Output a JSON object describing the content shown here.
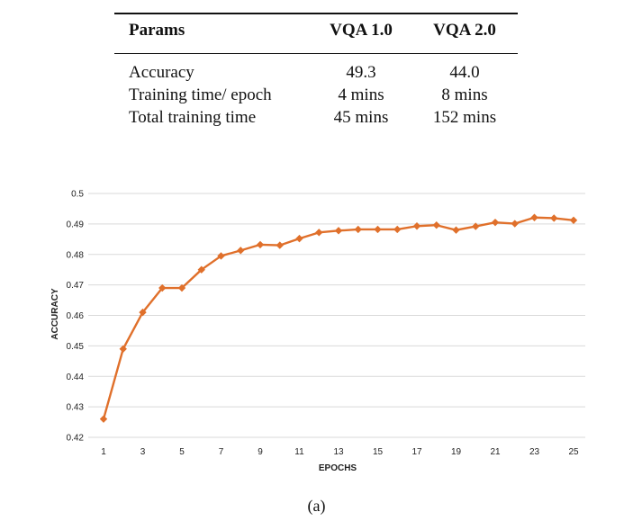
{
  "table": {
    "headers": [
      "Params",
      "VQA 1.0",
      "VQA 2.0"
    ],
    "rows": [
      [
        "Accuracy",
        "49.3",
        "44.0"
      ],
      [
        "Training time/ epoch",
        "4 mins",
        "8 mins"
      ],
      [
        "Total training time",
        "45 mins",
        "152 mins"
      ]
    ]
  },
  "chart_data": {
    "type": "line",
    "xlabel": "EPOCHS",
    "ylabel": "ACCURACY",
    "x": [
      1,
      2,
      3,
      4,
      5,
      6,
      7,
      8,
      9,
      10,
      11,
      12,
      13,
      14,
      15,
      16,
      17,
      18,
      19,
      20,
      21,
      22,
      23,
      24,
      25
    ],
    "x_tick_labels": [
      "1",
      "3",
      "5",
      "7",
      "9",
      "11",
      "13",
      "15",
      "17",
      "19",
      "21",
      "23",
      "25"
    ],
    "y_tick_labels": [
      "0.42",
      "0.43",
      "0.44",
      "0.45",
      "0.46",
      "0.47",
      "0.48",
      "0.49",
      "0.5"
    ],
    "ylim": [
      0.42,
      0.5
    ],
    "xlim": [
      1,
      25
    ],
    "grid": "horizontal",
    "series": [
      {
        "color": "#e0702b",
        "marker": "diamond",
        "values": [
          0.426,
          0.449,
          0.461,
          0.469,
          0.469,
          0.475,
          0.4795,
          0.4813,
          0.4832,
          0.483,
          0.4852,
          0.4872,
          0.4878,
          0.4882,
          0.4882,
          0.4882,
          0.4893,
          0.4896,
          0.488,
          0.4892,
          0.4905,
          0.4901,
          0.4921,
          0.4919,
          0.4912
        ]
      }
    ]
  },
  "caption": "(a)"
}
